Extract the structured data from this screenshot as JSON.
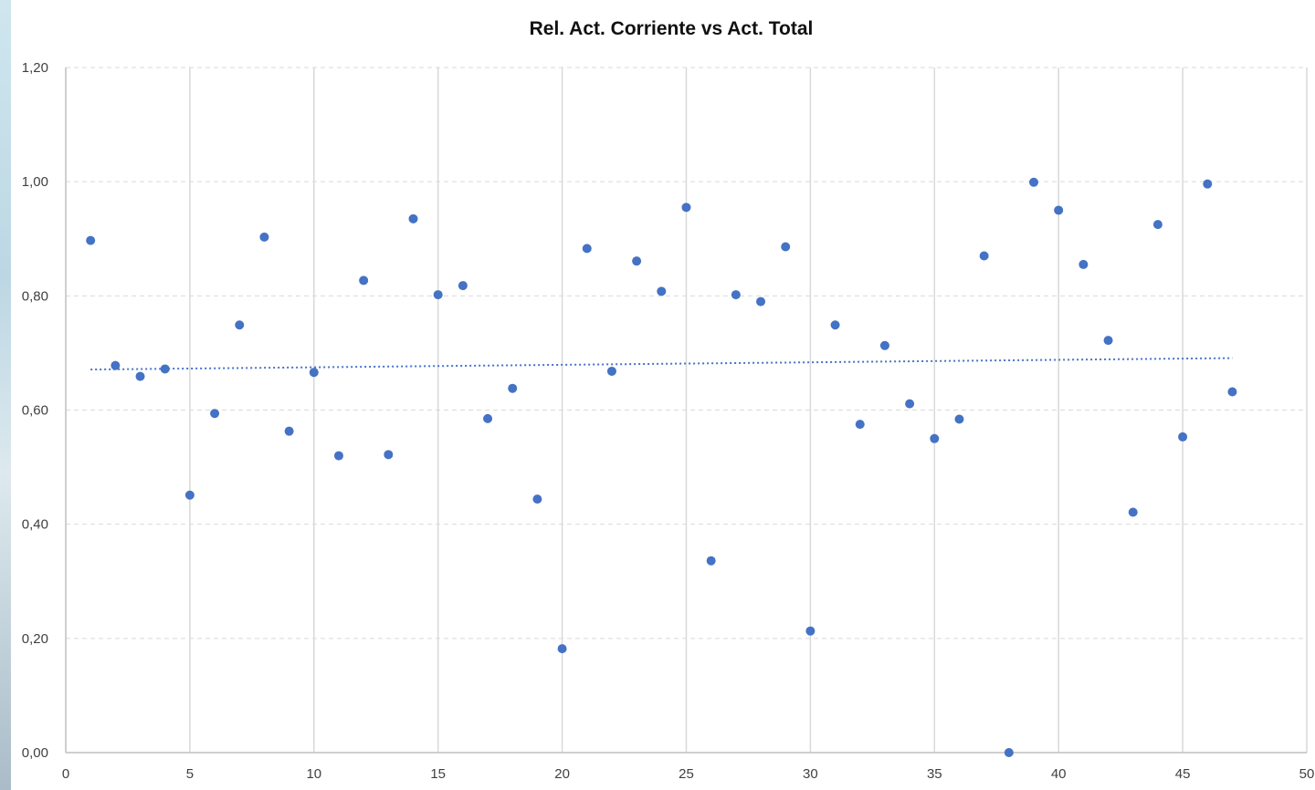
{
  "chart_data": {
    "type": "scatter",
    "title": "Rel. Act. Corriente vs Act. Total",
    "xlabel": "",
    "ylabel": "",
    "xlim": [
      0,
      50
    ],
    "ylim": [
      0,
      1.2
    ],
    "x_ticks": [
      "0",
      "5",
      "10",
      "15",
      "20",
      "25",
      "30",
      "35",
      "40",
      "45",
      "50"
    ],
    "y_ticks": [
      "0,00",
      "0,20",
      "0,40",
      "0,60",
      "0,80",
      "1,00",
      "1,20"
    ],
    "x_gridlines": "vertical solid major",
    "y_gridlines": "horizontal dashed major",
    "legend": "none",
    "series": [
      {
        "x": [
          1,
          2,
          3,
          4,
          5,
          6,
          7,
          8,
          9,
          10,
          11,
          12,
          13,
          14,
          15,
          16,
          17,
          18,
          19,
          20,
          21,
          22,
          23,
          24,
          25,
          26,
          27,
          28,
          29,
          30,
          31,
          32,
          33,
          34,
          35,
          36,
          37,
          38,
          39,
          40,
          41,
          42,
          43,
          44,
          45,
          46,
          47
        ],
        "values": [
          0.897,
          0.678,
          0.659,
          0.672,
          0.451,
          0.594,
          0.749,
          0.903,
          0.563,
          0.666,
          0.52,
          0.827,
          0.522,
          0.935,
          0.802,
          0.818,
          0.585,
          0.638,
          0.444,
          0.182,
          0.883,
          0.668,
          0.861,
          0.808,
          0.955,
          0.336,
          0.802,
          0.79,
          0.886,
          0.213,
          0.749,
          0.575,
          0.713,
          0.611,
          0.55,
          0.584,
          0.87,
          0.0,
          0.999,
          0.95,
          0.855,
          0.722,
          0.421,
          0.925,
          0.553,
          0.996,
          0.632
        ],
        "color": "#4472c4"
      }
    ],
    "trendline": {
      "type": "linear",
      "style": "dotted",
      "color": "#4472c4",
      "x": [
        1,
        47
      ],
      "values": [
        0.671,
        0.691
      ]
    }
  }
}
